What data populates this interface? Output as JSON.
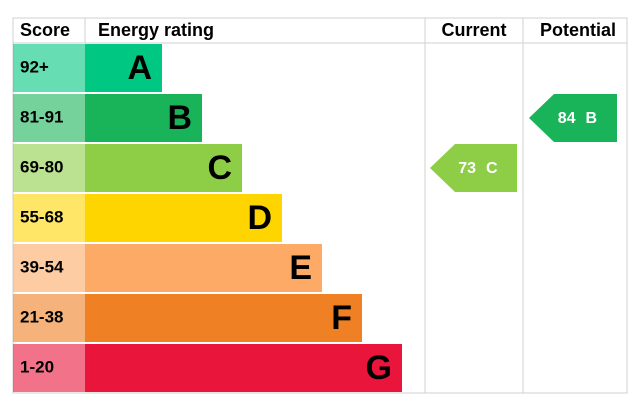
{
  "header": {
    "score": "Score",
    "rating": "Energy rating",
    "current": "Current",
    "potential": "Potential"
  },
  "rows": [
    {
      "score": "92+",
      "rating": "A",
      "color": "#00c781"
    },
    {
      "score": "81-91",
      "rating": "B",
      "color": "#19b459"
    },
    {
      "score": "69-80",
      "rating": "C",
      "color": "#8dce46"
    },
    {
      "score": "55-68",
      "rating": "D",
      "color": "#ffd500"
    },
    {
      "score": "39-54",
      "rating": "E",
      "color": "#fcaa65"
    },
    {
      "score": "21-38",
      "rating": "F",
      "color": "#ef8023"
    },
    {
      "score": "1-20",
      "rating": "G",
      "color": "#e9153b"
    }
  ],
  "current": {
    "score": 73,
    "rating": "C"
  },
  "potential": {
    "score": 84,
    "rating": "B"
  }
}
